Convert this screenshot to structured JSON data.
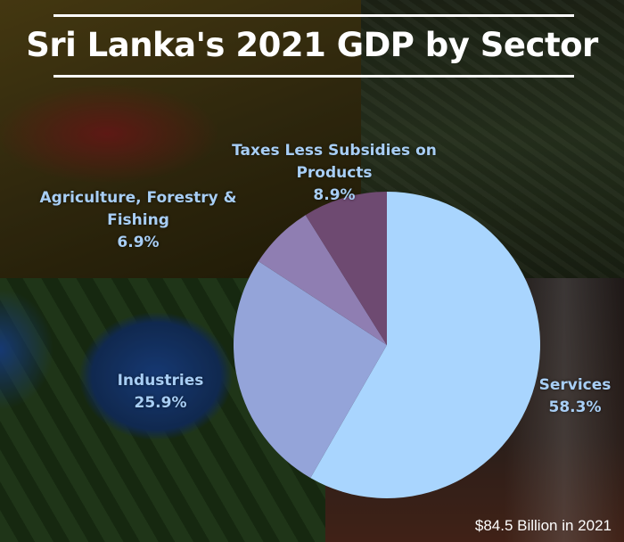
{
  "chart_data": {
    "type": "pie",
    "title": "Sri Lanka's 2021 GDP by Sector",
    "categories": [
      "Services",
      "Industries",
      "Agriculture, Forestry & Fishing",
      "Taxes Less Subsidies on Products"
    ],
    "values": [
      58.3,
      25.9,
      6.9,
      8.9
    ],
    "value_labels": [
      "58.3%",
      "25.9%",
      "6.9%",
      "8.9%"
    ],
    "colors": [
      "#a9d5fe",
      "#94a4d9",
      "#8f7eb2",
      "#6e4a71"
    ],
    "start_angle_deg": 0,
    "direction": "clockwise",
    "annotation": "$84.5 Billion in 2021"
  }
}
